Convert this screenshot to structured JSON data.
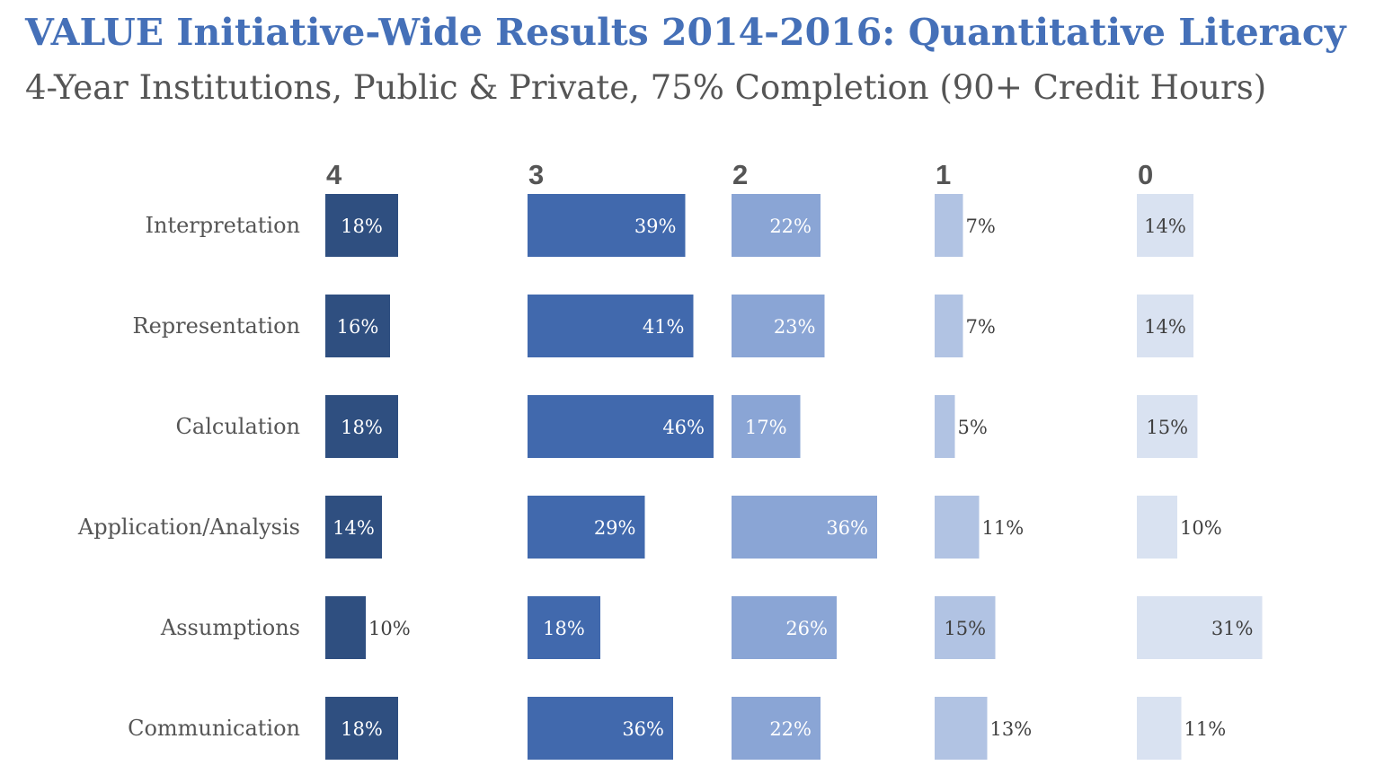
{
  "chart_data": {
    "type": "bar",
    "title": "VALUE Initiative-Wide Results 2014-2016: Quantitative Literacy",
    "subtitle": "4-Year Institutions, Public & Private, 75% Completion (90+ Credit Hours)",
    "categories": [
      "Interpretation",
      "Representation",
      "Calculation",
      "Application/Analysis",
      "Assumptions",
      "Communication"
    ],
    "series": [
      {
        "name": "4",
        "values": [
          18,
          16,
          18,
          14,
          10,
          18
        ],
        "color": "#2f4f80",
        "text_color": "#ffffff"
      },
      {
        "name": "3",
        "values": [
          39,
          41,
          46,
          29,
          18,
          36
        ],
        "color": "#4169ad",
        "text_color": "#ffffff"
      },
      {
        "name": "2",
        "values": [
          22,
          23,
          17,
          36,
          26,
          22
        ],
        "color": "#8aa5d5",
        "text_color": "#ffffff"
      },
      {
        "name": "1",
        "values": [
          7,
          7,
          5,
          11,
          15,
          13
        ],
        "color": "#b1c3e3",
        "text_color": "#404040"
      },
      {
        "name": "0",
        "values": [
          14,
          14,
          15,
          10,
          31,
          11
        ],
        "color": "#d9e2f1",
        "text_color": "#404040"
      }
    ],
    "value_suffix": "%",
    "xlim": [
      0,
      50
    ]
  }
}
